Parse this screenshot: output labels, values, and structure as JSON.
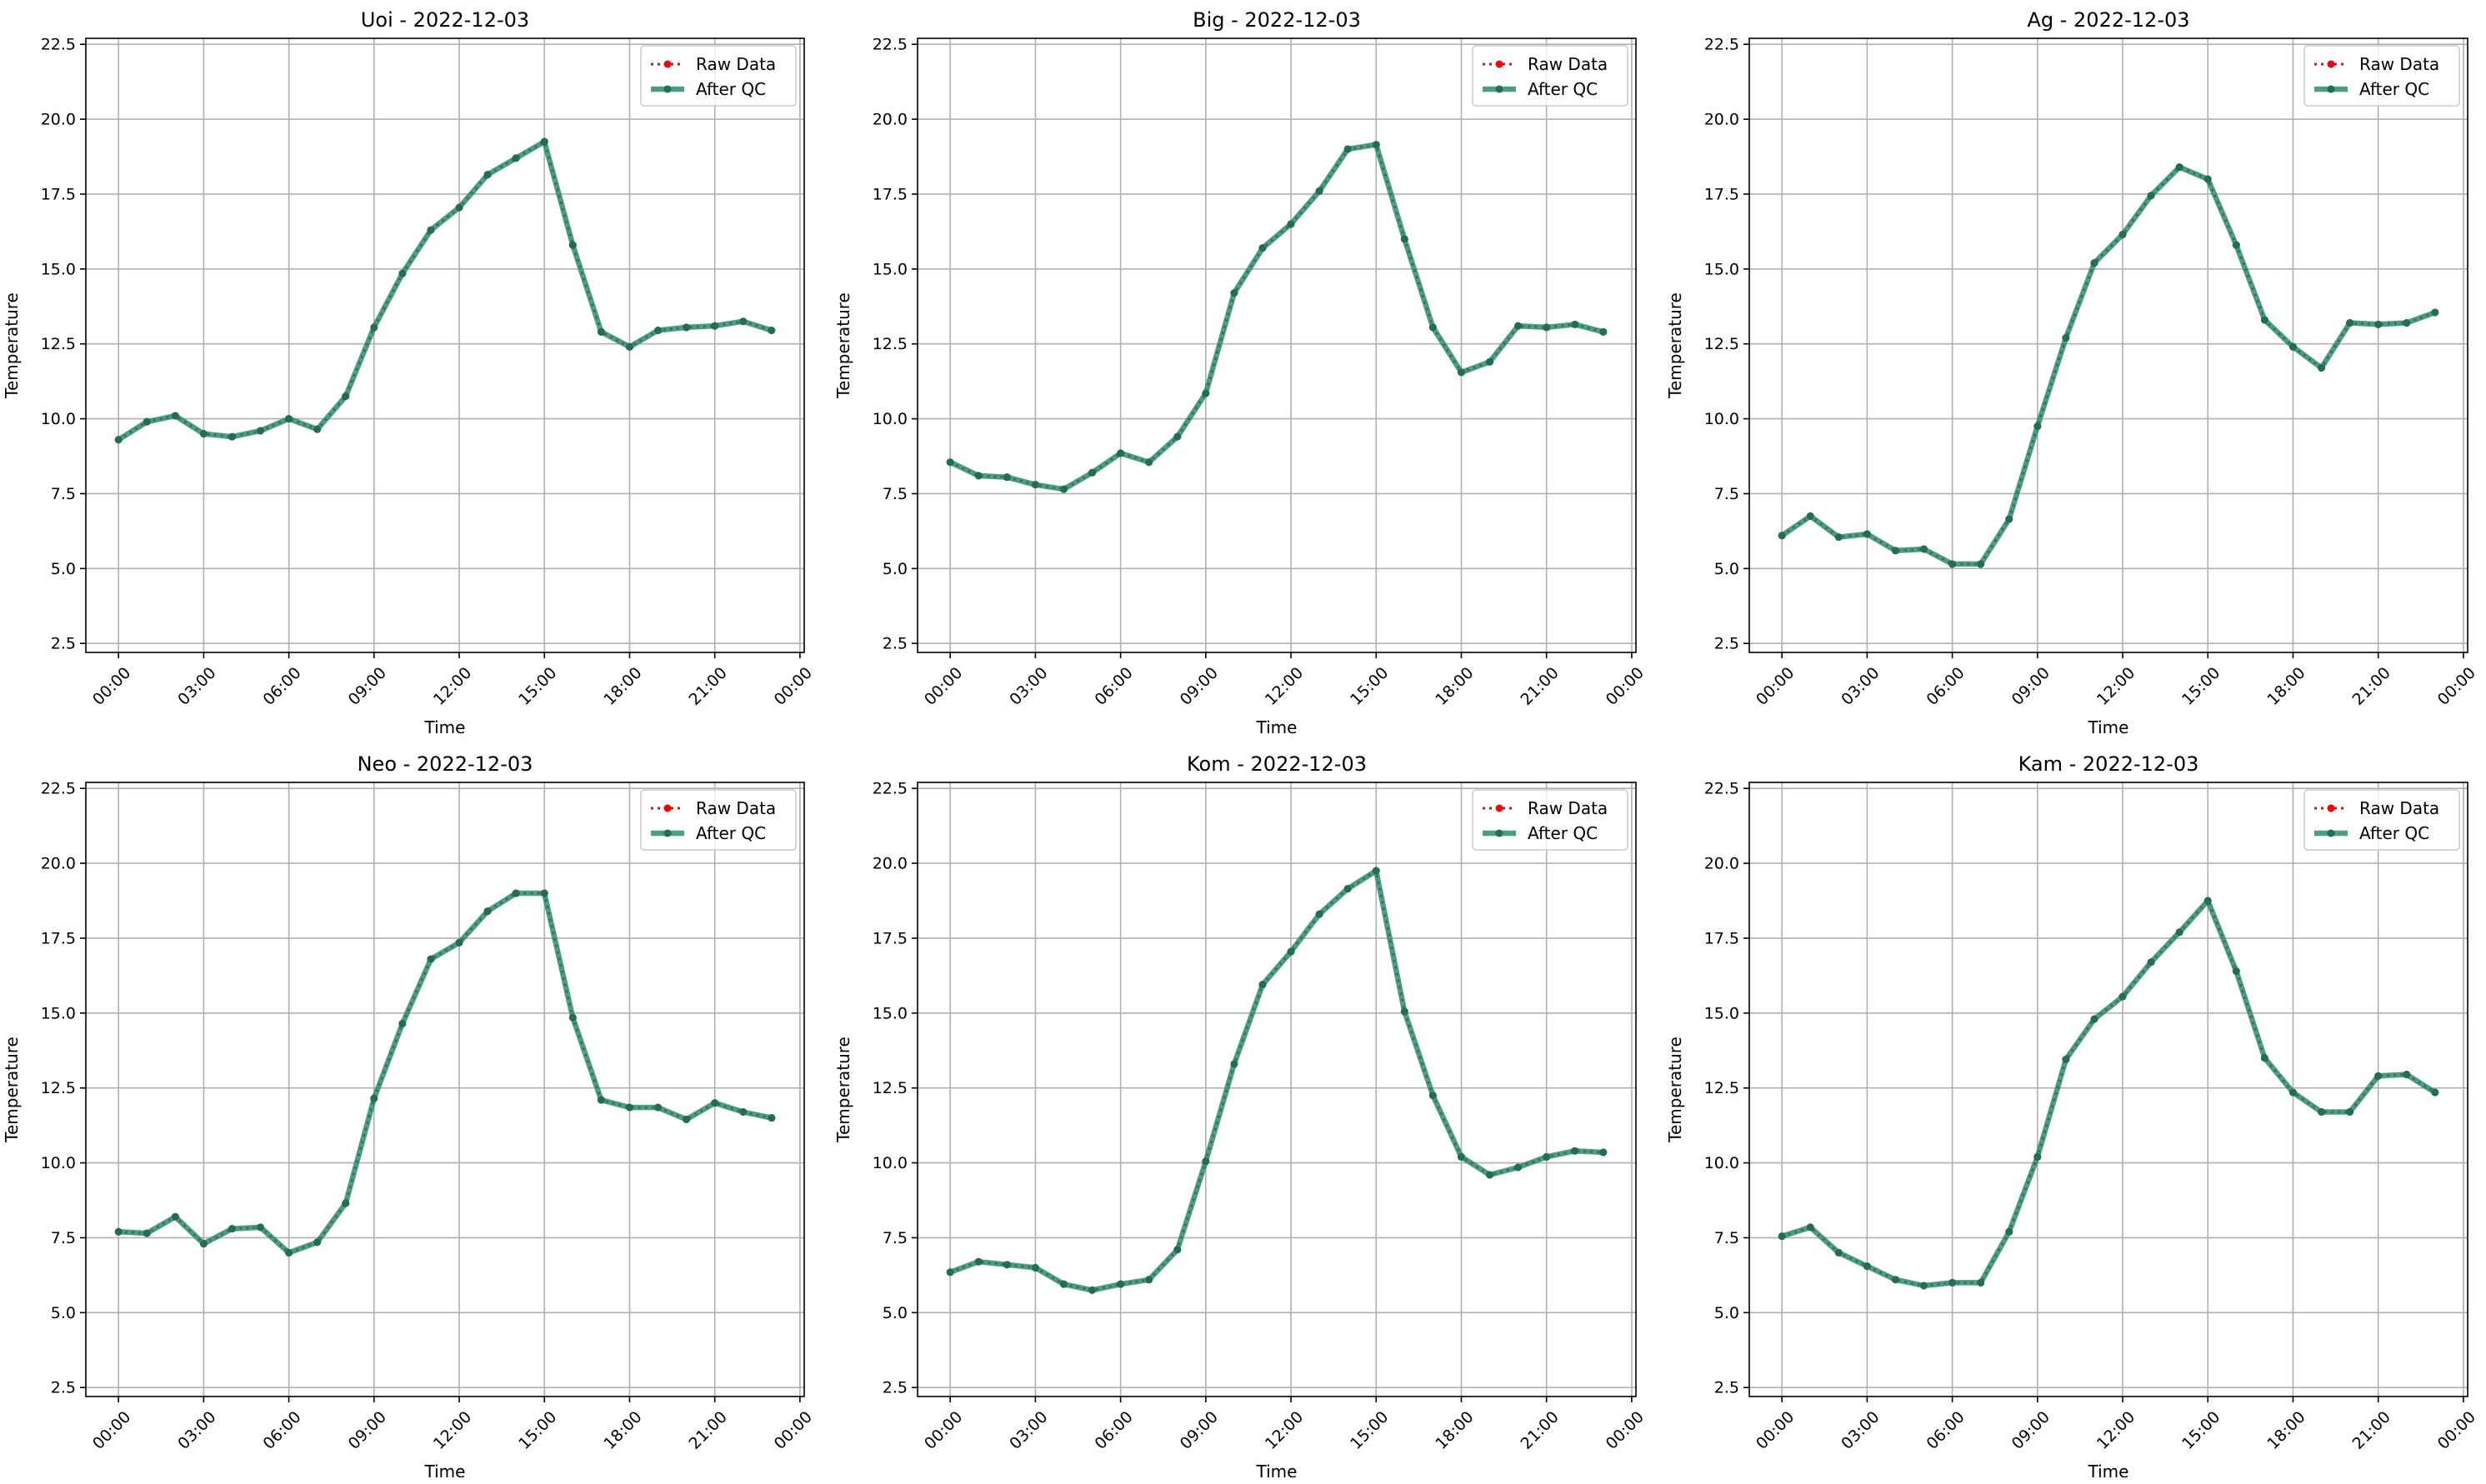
{
  "figure": {
    "legend_placement": "upper right",
    "grid": true,
    "colors": {
      "raw": "#ff0000",
      "qc": "#2e8b6e",
      "qc_marker": "#1f6e55"
    }
  },
  "chart_data": [
    {
      "type": "line",
      "title": "Uoi - 2022-12-03",
      "xlabel": "Time",
      "ylabel": "Temperature",
      "xticks": [
        "00:00",
        "03:00",
        "06:00",
        "09:00",
        "12:00",
        "15:00",
        "18:00",
        "21:00",
        "00:00"
      ],
      "xlim_hours": [
        -1.15,
        24.15
      ],
      "yticks": [
        "2.5",
        "5.0",
        "7.5",
        "10.0",
        "12.5",
        "15.0",
        "17.5",
        "20.0",
        "22.5"
      ],
      "ylim": [
        2.2,
        22.7
      ],
      "x": [
        0,
        1,
        2,
        3,
        4,
        5,
        6,
        7,
        8,
        9,
        10,
        11,
        12,
        13,
        14,
        15,
        16,
        17,
        18,
        19,
        20,
        21,
        22,
        23
      ],
      "series": [
        {
          "name": "Raw Data",
          "values": [
            9.3,
            9.9,
            10.1,
            9.5,
            9.4,
            9.6,
            10.0,
            9.65,
            10.75,
            13.05,
            14.85,
            16.3,
            17.05,
            18.15,
            18.7,
            19.25,
            15.8,
            12.9,
            12.4,
            12.95,
            13.05,
            13.1,
            13.25,
            12.95
          ]
        },
        {
          "name": "After QC",
          "values": [
            9.3,
            9.9,
            10.1,
            9.5,
            9.4,
            9.6,
            10.0,
            9.65,
            10.75,
            13.05,
            14.85,
            16.3,
            17.05,
            18.15,
            18.7,
            19.25,
            15.8,
            12.9,
            12.4,
            12.95,
            13.05,
            13.1,
            13.25,
            12.95
          ]
        }
      ]
    },
    {
      "type": "line",
      "title": "Big - 2022-12-03",
      "xlabel": "Time",
      "ylabel": "Temperature",
      "xticks": [
        "00:00",
        "03:00",
        "06:00",
        "09:00",
        "12:00",
        "15:00",
        "18:00",
        "21:00",
        "00:00"
      ],
      "xlim_hours": [
        -1.15,
        24.15
      ],
      "yticks": [
        "2.5",
        "5.0",
        "7.5",
        "10.0",
        "12.5",
        "15.0",
        "17.5",
        "20.0",
        "22.5"
      ],
      "ylim": [
        2.2,
        22.7
      ],
      "x": [
        0,
        1,
        2,
        3,
        4,
        5,
        6,
        7,
        8,
        9,
        10,
        11,
        12,
        13,
        14,
        15,
        16,
        17,
        18,
        19,
        20,
        21,
        22,
        23
      ],
      "series": [
        {
          "name": "Raw Data",
          "values": [
            8.55,
            8.1,
            8.05,
            7.8,
            7.65,
            8.2,
            8.85,
            8.55,
            9.4,
            10.85,
            14.2,
            15.7,
            16.5,
            17.6,
            19.0,
            19.15,
            16.0,
            13.05,
            11.55,
            11.9,
            13.1,
            13.05,
            13.15,
            12.9
          ]
        },
        {
          "name": "After QC",
          "values": [
            8.55,
            8.1,
            8.05,
            7.8,
            7.65,
            8.2,
            8.85,
            8.55,
            9.4,
            10.85,
            14.2,
            15.7,
            16.5,
            17.6,
            19.0,
            19.15,
            16.0,
            13.05,
            11.55,
            11.9,
            13.1,
            13.05,
            13.15,
            12.9
          ]
        }
      ]
    },
    {
      "type": "line",
      "title": "Ag - 2022-12-03",
      "xlabel": "Time",
      "ylabel": "Temperature",
      "xticks": [
        "00:00",
        "03:00",
        "06:00",
        "09:00",
        "12:00",
        "15:00",
        "18:00",
        "21:00",
        "00:00"
      ],
      "xlim_hours": [
        -1.15,
        24.15
      ],
      "yticks": [
        "2.5",
        "5.0",
        "7.5",
        "10.0",
        "12.5",
        "15.0",
        "17.5",
        "20.0",
        "22.5"
      ],
      "ylim": [
        2.2,
        22.7
      ],
      "x": [
        0,
        1,
        2,
        3,
        4,
        5,
        6,
        7,
        8,
        9,
        10,
        11,
        12,
        13,
        14,
        15,
        16,
        17,
        18,
        19,
        20,
        21,
        22,
        23
      ],
      "series": [
        {
          "name": "Raw Data",
          "values": [
            6.1,
            6.75,
            6.05,
            6.15,
            5.6,
            5.65,
            5.15,
            5.15,
            6.65,
            9.75,
            12.7,
            15.2,
            16.15,
            17.45,
            18.4,
            18.0,
            15.8,
            13.3,
            12.4,
            11.7,
            13.2,
            13.15,
            13.2,
            13.55
          ]
        },
        {
          "name": "After QC",
          "values": [
            6.1,
            6.75,
            6.05,
            6.15,
            5.6,
            5.65,
            5.15,
            5.15,
            6.65,
            9.75,
            12.7,
            15.2,
            16.15,
            17.45,
            18.4,
            18.0,
            15.8,
            13.3,
            12.4,
            11.7,
            13.2,
            13.15,
            13.2,
            13.55
          ]
        }
      ]
    },
    {
      "type": "line",
      "title": "Neo - 2022-12-03",
      "xlabel": "Time",
      "ylabel": "Temperature",
      "xticks": [
        "00:00",
        "03:00",
        "06:00",
        "09:00",
        "12:00",
        "15:00",
        "18:00",
        "21:00",
        "00:00"
      ],
      "xlim_hours": [
        -1.15,
        24.15
      ],
      "yticks": [
        "2.5",
        "5.0",
        "7.5",
        "10.0",
        "12.5",
        "15.0",
        "17.5",
        "20.0",
        "22.5"
      ],
      "ylim": [
        2.2,
        22.7
      ],
      "x": [
        0,
        1,
        2,
        3,
        4,
        5,
        6,
        7,
        8,
        9,
        10,
        11,
        12,
        13,
        14,
        15,
        16,
        17,
        18,
        19,
        20,
        21,
        22,
        23
      ],
      "series": [
        {
          "name": "Raw Data",
          "values": [
            7.7,
            7.65,
            8.2,
            7.3,
            7.8,
            7.85,
            7.0,
            7.35,
            8.65,
            12.15,
            14.65,
            16.8,
            17.35,
            18.4,
            19.0,
            19.0,
            14.85,
            12.1,
            11.85,
            11.85,
            11.45,
            12.0,
            11.7,
            11.5
          ]
        },
        {
          "name": "After QC",
          "values": [
            7.7,
            7.65,
            8.2,
            7.3,
            7.8,
            7.85,
            7.0,
            7.35,
            8.65,
            12.15,
            14.65,
            16.8,
            17.35,
            18.4,
            19.0,
            19.0,
            14.85,
            12.1,
            11.85,
            11.85,
            11.45,
            12.0,
            11.7,
            11.5
          ]
        }
      ]
    },
    {
      "type": "line",
      "title": "Kom - 2022-12-03",
      "xlabel": "Time",
      "ylabel": "Temperature",
      "xticks": [
        "00:00",
        "03:00",
        "06:00",
        "09:00",
        "12:00",
        "15:00",
        "18:00",
        "21:00",
        "00:00"
      ],
      "xlim_hours": [
        -1.15,
        24.15
      ],
      "yticks": [
        "2.5",
        "5.0",
        "7.5",
        "10.0",
        "12.5",
        "15.0",
        "17.5",
        "20.0",
        "22.5"
      ],
      "ylim": [
        2.2,
        22.7
      ],
      "x": [
        0,
        1,
        2,
        3,
        4,
        5,
        6,
        7,
        8,
        9,
        10,
        11,
        12,
        13,
        14,
        15,
        16,
        17,
        18,
        19,
        20,
        21,
        22,
        23
      ],
      "series": [
        {
          "name": "Raw Data",
          "values": [
            6.35,
            6.7,
            6.6,
            6.5,
            5.95,
            5.75,
            5.95,
            6.1,
            7.1,
            10.05,
            13.3,
            15.95,
            17.05,
            18.3,
            19.15,
            19.75,
            15.05,
            12.25,
            10.2,
            9.6,
            9.85,
            10.2,
            10.4,
            10.35
          ]
        },
        {
          "name": "After QC",
          "values": [
            6.35,
            6.7,
            6.6,
            6.5,
            5.95,
            5.75,
            5.95,
            6.1,
            7.1,
            10.05,
            13.3,
            15.95,
            17.05,
            18.3,
            19.15,
            19.75,
            15.05,
            12.25,
            10.2,
            9.6,
            9.85,
            10.2,
            10.4,
            10.35
          ]
        }
      ]
    },
    {
      "type": "line",
      "title": "Kam - 2022-12-03",
      "xlabel": "Time",
      "ylabel": "Temperature",
      "xticks": [
        "00:00",
        "03:00",
        "06:00",
        "09:00",
        "12:00",
        "15:00",
        "18:00",
        "21:00",
        "00:00"
      ],
      "xlim_hours": [
        -1.15,
        24.15
      ],
      "yticks": [
        "2.5",
        "5.0",
        "7.5",
        "10.0",
        "12.5",
        "15.0",
        "17.5",
        "20.0",
        "22.5"
      ],
      "ylim": [
        2.2,
        22.7
      ],
      "x": [
        0,
        1,
        2,
        3,
        4,
        5,
        6,
        7,
        8,
        9,
        10,
        11,
        12,
        13,
        14,
        15,
        16,
        17,
        18,
        19,
        20,
        21,
        22,
        23
      ],
      "series": [
        {
          "name": "Raw Data",
          "values": [
            7.55,
            7.85,
            7.0,
            6.55,
            6.1,
            5.9,
            6.0,
            6.0,
            7.7,
            10.2,
            13.45,
            14.8,
            15.55,
            16.7,
            17.7,
            18.75,
            16.4,
            13.5,
            12.35,
            11.7,
            11.7,
            12.9,
            12.95,
            12.35
          ]
        },
        {
          "name": "After QC",
          "values": [
            7.55,
            7.85,
            7.0,
            6.55,
            6.1,
            5.9,
            6.0,
            6.0,
            7.7,
            10.2,
            13.45,
            14.8,
            15.55,
            16.7,
            17.7,
            18.75,
            16.4,
            13.5,
            12.35,
            11.7,
            11.7,
            12.9,
            12.95,
            12.35
          ]
        }
      ]
    }
  ]
}
